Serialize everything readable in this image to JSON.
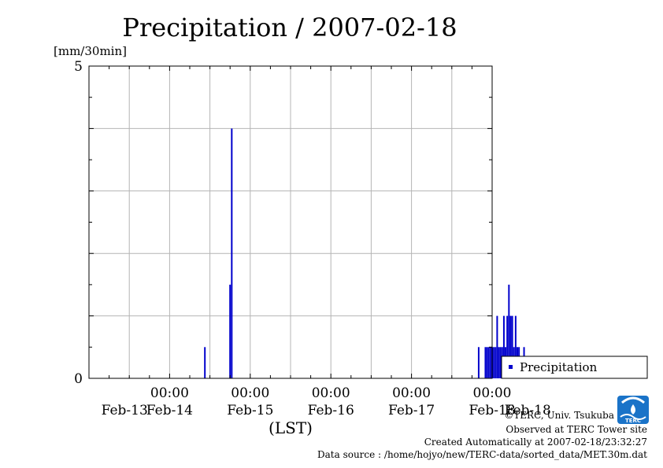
{
  "chart_data": {
    "type": "bar",
    "title": "Precipitation / 2007-02-18",
    "ylabel": "[mm/30min]",
    "xlabel": "(LST)",
    "ylim": [
      0,
      5
    ],
    "y_ticks": [
      "0",
      "5"
    ],
    "xlim_hours": [
      -24,
      96
    ],
    "x_ticks": [
      {
        "hour": 0,
        "time": "00:00",
        "date": "Feb-14"
      },
      {
        "hour": 24,
        "time": "00:00",
        "date": "Feb-15"
      },
      {
        "hour": 48,
        "time": "00:00",
        "date": "Feb-16"
      },
      {
        "hour": 72,
        "time": "00:00",
        "date": "Feb-17"
      },
      {
        "hour": 96,
        "time": "00:00",
        "date": "Feb-18"
      }
    ],
    "x_date_labels_extra": [
      {
        "hour": -12,
        "date": "Feb-13"
      },
      {
        "hour": 108,
        "date": "Feb-18"
      }
    ],
    "grid": true,
    "legend": {
      "position": "right",
      "entries": [
        "Precipitation"
      ]
    },
    "series_color": "#0000cc",
    "series": [
      {
        "name": "Precipitation",
        "points": [
          [
            10.5,
            0.5
          ],
          [
            18.0,
            1.5
          ],
          [
            18.5,
            4.0
          ],
          [
            92.0,
            0.5
          ],
          [
            94.0,
            0.5
          ],
          [
            94.5,
            0.5
          ],
          [
            95.0,
            0.5
          ],
          [
            95.5,
            0.5
          ],
          [
            96.0,
            0.5
          ],
          [
            96.5,
            0.5
          ],
          [
            97.0,
            0.5
          ],
          [
            97.5,
            1.0
          ],
          [
            98.0,
            0.5
          ],
          [
            98.5,
            0.5
          ],
          [
            99.0,
            0.5
          ],
          [
            99.5,
            1.0
          ],
          [
            100.0,
            0.5
          ],
          [
            100.5,
            1.0
          ],
          [
            101.0,
            1.5
          ],
          [
            101.5,
            1.0
          ],
          [
            102.0,
            1.0
          ],
          [
            102.5,
            0.5
          ],
          [
            103.0,
            1.0
          ],
          [
            103.5,
            0.5
          ],
          [
            104.0,
            0.5
          ],
          [
            105.5,
            0.5
          ]
        ]
      }
    ]
  },
  "footer": {
    "copyright": "©TERC, Univ. Tsukuba",
    "site": "Observed at TERC Tower site",
    "created": "Created Automatically at 2007-02-18/23:32:27",
    "source": "Data source : /home/hojyo/new/TERC-data/sorted_data/MET.30m.dat",
    "logo_text": "TERC"
  }
}
